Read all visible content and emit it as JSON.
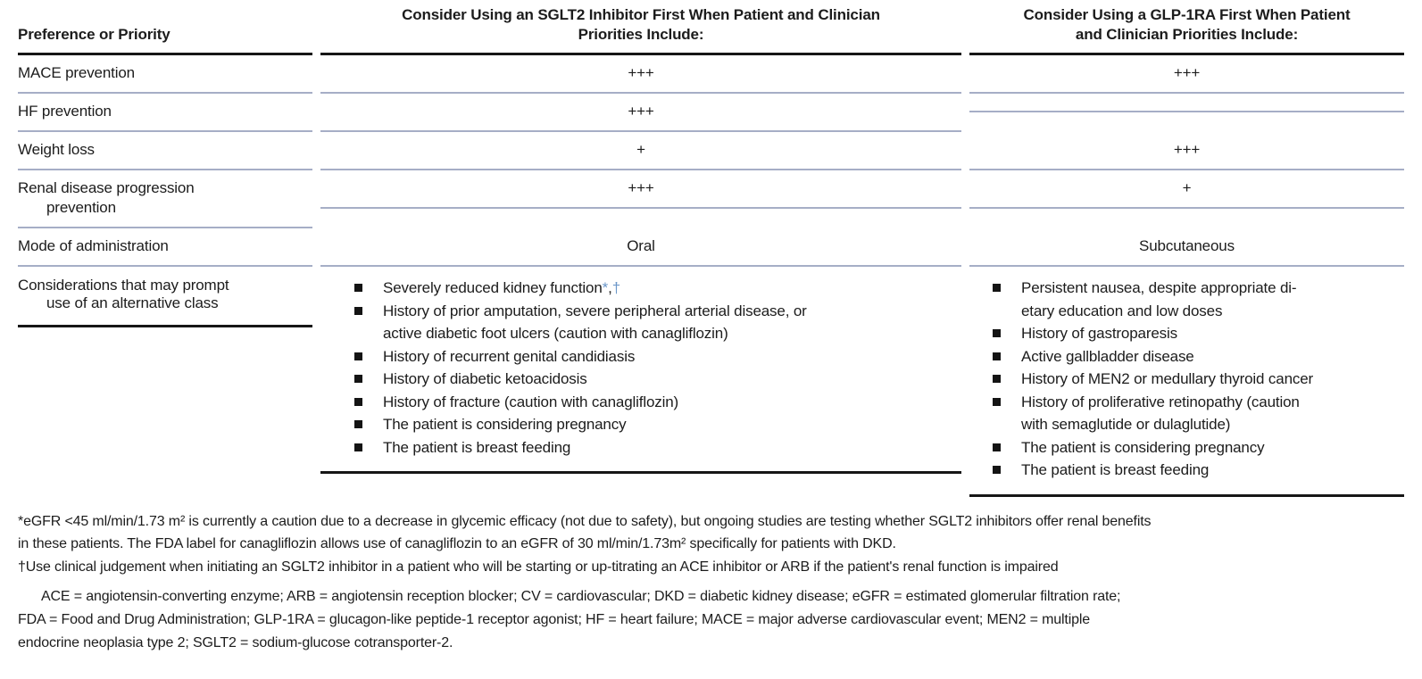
{
  "colors": {
    "rule": "#161616",
    "separator": "#a6aec6",
    "reference_mark_blue": "#6b97c9"
  },
  "table": {
    "header": {
      "col1": "Preference or Priority",
      "col2_line1": "Consider Using an SGLT2 Inhibitor First When Patient and Clinician",
      "col2_line2": "Priorities Include:",
      "col3_line1": "Consider Using a GLP-1RA First When Patient",
      "col3_line2": "and Clinician Priorities Include:"
    },
    "rows": [
      {
        "label": "MACE prevention",
        "label2": "",
        "sglt2": "+++",
        "glp1ra": "+++"
      },
      {
        "label": "HF prevention",
        "label2": "",
        "sglt2": "+++",
        "glp1ra": ""
      },
      {
        "label": "Weight loss",
        "label2": "",
        "sglt2": "+",
        "glp1ra": "+++"
      },
      {
        "label": "Renal disease progression",
        "label2": "prevention",
        "sglt2": "+++",
        "glp1ra": "+"
      },
      {
        "label": "Mode of administration",
        "label2": "",
        "sglt2": "Oral",
        "glp1ra": "Subcutaneous"
      }
    ],
    "considerations": {
      "label_line1": "Considerations that may prompt",
      "label_line2": "use of an alternative class",
      "sglt2_item0": {
        "text": "Severely reduced kidney function",
        "mark1": "*",
        "comma": ",",
        "mark2": "†"
      },
      "sglt2_items": [
        "History of prior amputation, severe peripheral arterial disease, or\nactive diabetic foot ulcers (caution with canagliflozin)",
        "History of recurrent genital candidiasis",
        "History of diabetic ketoacidosis",
        "History of fracture (caution with canagliflozin)",
        "The patient is considering pregnancy",
        "The patient is breast feeding"
      ],
      "glp1ra_items": [
        "Persistent nausea, despite appropriate di-\netary education and low doses",
        "History of gastroparesis",
        "Active gallbladder disease",
        "History of MEN2 or medullary thyroid cancer",
        "History of proliferative retinopathy (caution\nwith semaglutide or dulaglutide)",
        "The patient is considering pregnancy",
        "The patient is breast feeding"
      ]
    }
  },
  "footnotes": {
    "star": "*eGFR <45 ml/min/1.73 m² is currently a caution due to a decrease in glycemic efficacy (not due to safety), but ongoing studies are testing whether SGLT2 inhibitors offer renal benefits\nin these patients. The FDA label for canagliflozin allows use of canagliflozin to an eGFR of 30 ml/min/1.73m² specifically for patients with DKD.",
    "dagger": "†Use clinical judgement when initiating an SGLT2 inhibitor in a patient who will be starting or up-titrating an ACE inhibitor or ARB if the patient's renal function is impaired",
    "abbreviations": "ACE = angiotensin-converting enzyme; ARB = angiotensin reception blocker; CV = cardiovascular; DKD = diabetic kidney disease; eGFR = estimated glomerular filtration rate;\nFDA = Food and Drug Administration; GLP-1RA = glucagon-like peptide-1 receptor agonist; HF = heart failure; MACE = major adverse cardiovascular event; MEN2 = multiple\nendocrine neoplasia type 2; SGLT2 = sodium-glucose cotransporter-2."
  }
}
